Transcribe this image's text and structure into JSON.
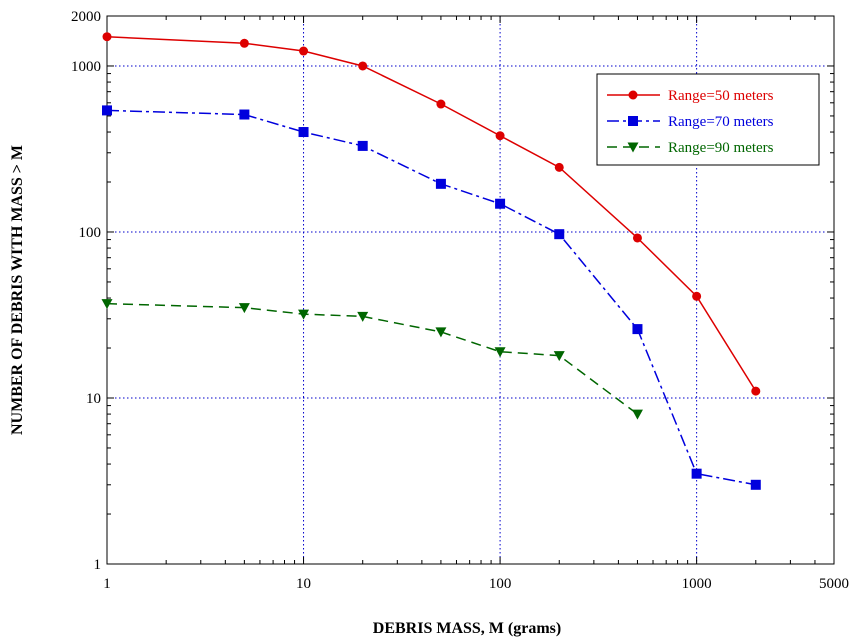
{
  "chart_data": {
    "type": "line",
    "xlabel": "DEBRIS MASS, M (grams)",
    "ylabel": "NUMBER OF DEBRIS WITH MASS  > M",
    "x_scale": "log",
    "y_scale": "log",
    "xlim": [
      1,
      5000
    ],
    "ylim": [
      1,
      2000
    ],
    "x_ticks": [
      1,
      10,
      100,
      1000,
      5000
    ],
    "x_tick_labels": [
      "1",
      "10",
      "100",
      "1000",
      "5000"
    ],
    "y_ticks": [
      1,
      10,
      100,
      1000,
      2000
    ],
    "y_tick_labels": [
      "1",
      "10",
      "100",
      "1000",
      "2000"
    ],
    "grid": true,
    "legend_position": "top-right",
    "series": [
      {
        "name": "Range=50 meters",
        "color": "#dd0000",
        "marker": "circle",
        "line_style": "solid",
        "points": [
          [
            1,
            1500
          ],
          [
            5,
            1370
          ],
          [
            10,
            1230
          ],
          [
            20,
            1000
          ],
          [
            50,
            590
          ],
          [
            100,
            380
          ],
          [
            200,
            245
          ],
          [
            500,
            92
          ],
          [
            1000,
            41
          ],
          [
            2000,
            11
          ]
        ]
      },
      {
        "name": "Range=70 meters",
        "color": "#0000dd",
        "marker": "square",
        "line_style": "dash-dot",
        "points": [
          [
            1,
            540
          ],
          [
            5,
            510
          ],
          [
            10,
            400
          ],
          [
            20,
            330
          ],
          [
            50,
            195
          ],
          [
            100,
            148
          ],
          [
            200,
            97
          ],
          [
            500,
            26
          ],
          [
            1000,
            3.5
          ],
          [
            2000,
            3
          ]
        ]
      },
      {
        "name": "Range=90 meters",
        "color": "#006600",
        "marker": "triangle-down",
        "line_style": "dashed",
        "points": [
          [
            1,
            37
          ],
          [
            5,
            35
          ],
          [
            10,
            32
          ],
          [
            20,
            31
          ],
          [
            50,
            25
          ],
          [
            100,
            19
          ],
          [
            200,
            18
          ],
          [
            500,
            8
          ]
        ]
      }
    ]
  }
}
